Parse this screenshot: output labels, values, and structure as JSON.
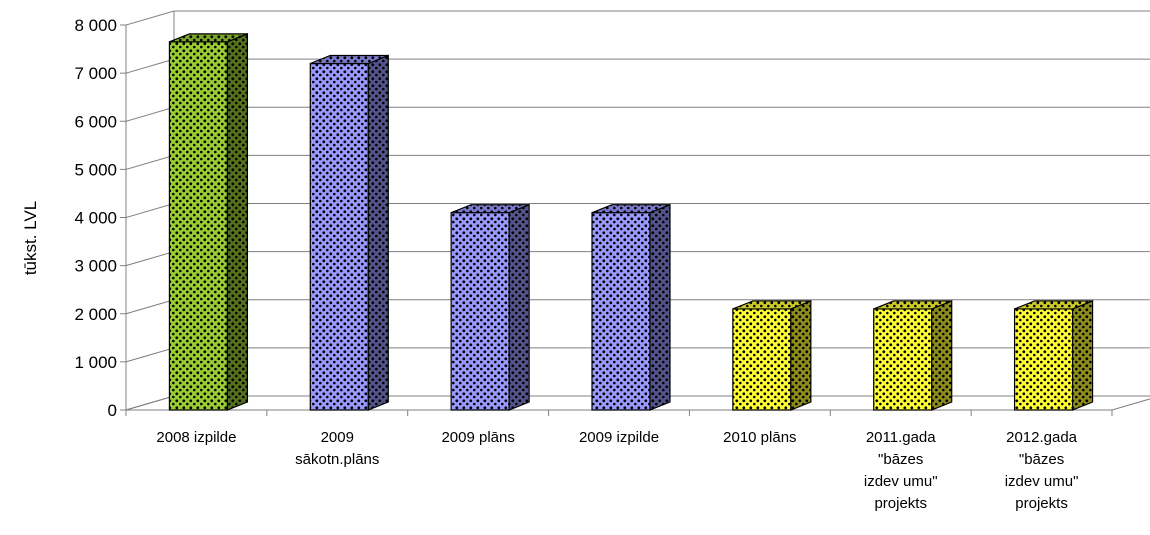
{
  "chart_data": {
    "type": "bar",
    "categories": [
      [
        "2008 izpilde"
      ],
      [
        "2009",
        "sākotn.plāns"
      ],
      [
        "2009 plāns"
      ],
      [
        "2009 izpilde"
      ],
      [
        "2010 plāns"
      ],
      [
        "2011.gada",
        "\"bāzes",
        "izdev umu\"",
        "projekts"
      ],
      [
        "2012.gada",
        "\"bāzes",
        "izdev umu\"",
        "projekts"
      ]
    ],
    "values": [
      7650,
      7200,
      4100,
      4100,
      2100,
      2100,
      2100
    ],
    "colors": [
      "#9acd32",
      "#9999ff",
      "#9999ff",
      "#9999ff",
      "#ffff33",
      "#ffff33",
      "#ffff33"
    ],
    "yticks": [
      {
        "value": 0,
        "label": "0"
      },
      {
        "value": 1000,
        "label": "1 000"
      },
      {
        "value": 2000,
        "label": "2 000"
      },
      {
        "value": 3000,
        "label": "3 000"
      },
      {
        "value": 4000,
        "label": "4 000"
      },
      {
        "value": 5000,
        "label": "5 000"
      },
      {
        "value": 6000,
        "label": "6 000"
      },
      {
        "value": 7000,
        "label": "7 000"
      },
      {
        "value": 8000,
        "label": "8 000"
      }
    ],
    "ylim": [
      0,
      8000
    ],
    "ylabel": "tūkst. LVL",
    "xlabel": "",
    "title": "",
    "grid": true,
    "style": "3d-column-dotted-pattern"
  }
}
